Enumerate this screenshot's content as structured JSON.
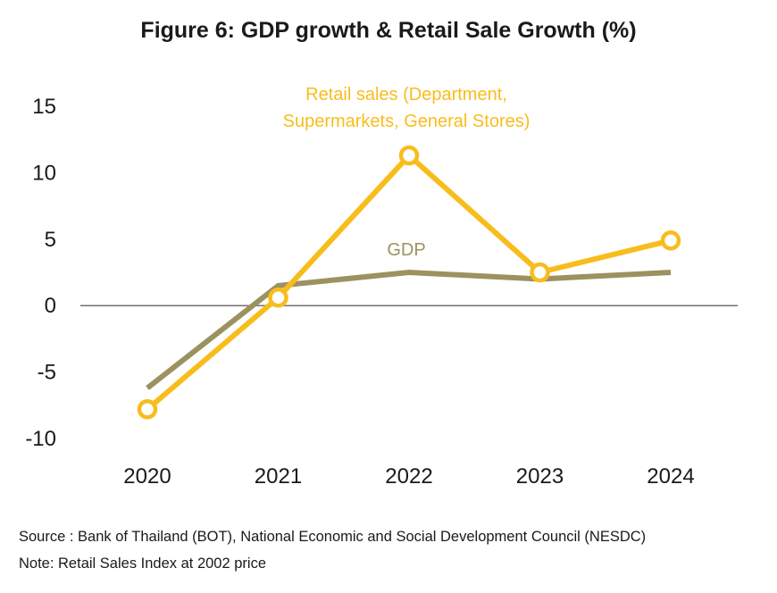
{
  "figure": {
    "title": "Figure 6: GDP growth & Retail Sale Growth (%)",
    "source": "Source : Bank of Thailand (BOT), National Economic and Social Development Council (NESDC)",
    "note": "Note: Retail Sales Index at 2002 price"
  },
  "chart_data": {
    "type": "line",
    "title": "Figure 6: GDP growth & Retail Sale Growth (%)",
    "x": [
      "2020",
      "2021",
      "2022",
      "2023",
      "2024"
    ],
    "ylim": [
      -10,
      15
    ],
    "yticks": [
      "15",
      "10",
      "5",
      "0",
      "-5",
      "-10"
    ],
    "ytick_values": [
      15,
      10,
      5,
      0,
      -5,
      -10
    ],
    "grid": false,
    "legend": "inline labels",
    "series": [
      {
        "name": "GDP",
        "label_lines": [
          "GDP"
        ],
        "values": [
          -6.2,
          1.5,
          2.5,
          2.0,
          2.5
        ],
        "color": "#9b9260",
        "markers": false
      },
      {
        "name": "Retail sales (Department, Supermarkets, General Stores)",
        "label_lines": [
          "Retail sales (Department,",
          "Supermarkets, General Stores)"
        ],
        "values": [
          -7.8,
          0.6,
          11.3,
          2.5,
          4.9
        ],
        "color": "#f8bd1c",
        "markers": true
      }
    ]
  }
}
